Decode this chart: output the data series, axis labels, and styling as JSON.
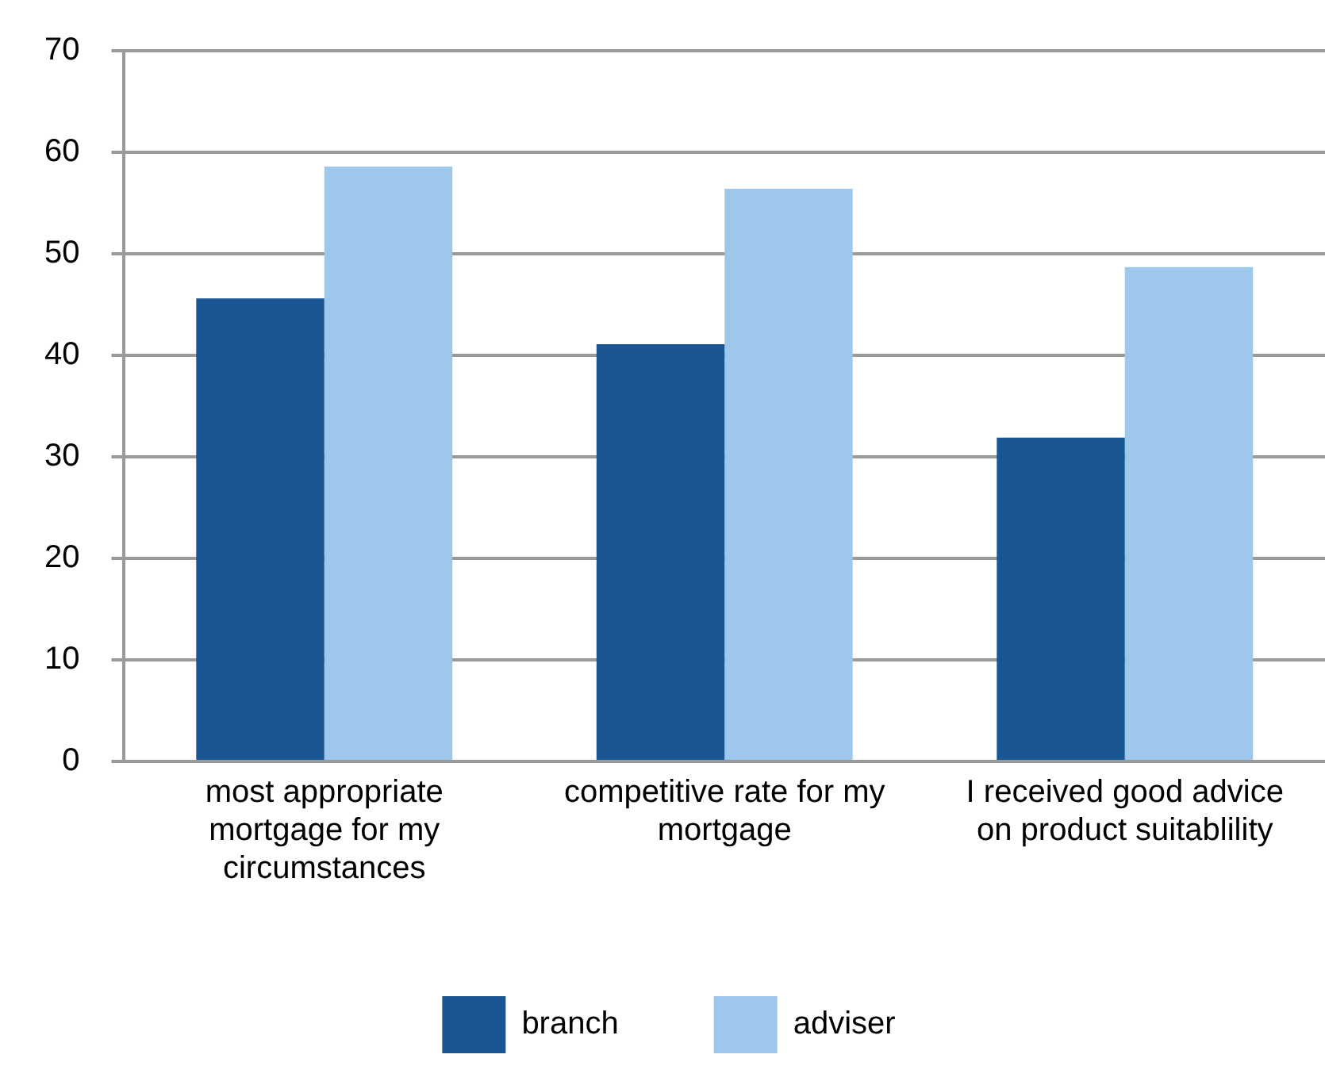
{
  "chart_data": {
    "type": "bar",
    "categories": [
      "most appropriate mortgage for my circumstances",
      "competitive rate for my mortgage",
      "I received good advice on product suitablility"
    ],
    "series": [
      {
        "name": "branch",
        "color": "#1a5594",
        "values": [
          45.6,
          41.1,
          31.9
        ]
      },
      {
        "name": "adviser",
        "color": "#9dc8eb",
        "values": [
          58.6,
          56.4,
          48.7
        ]
      }
    ],
    "ylim": [
      0,
      70
    ],
    "yticks": [
      0,
      10,
      20,
      30,
      40,
      50,
      60,
      70
    ],
    "grid": "y",
    "legend": "bottom"
  }
}
